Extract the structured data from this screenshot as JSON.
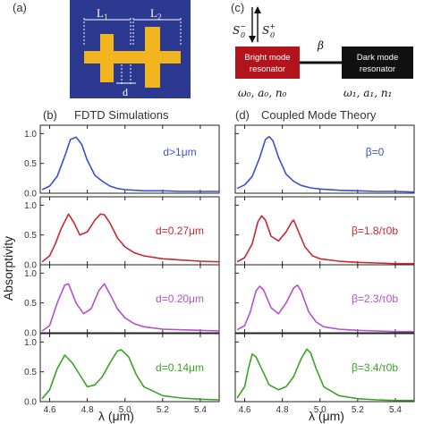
{
  "panel_labels": {
    "a": "(a)",
    "b": "(b)",
    "c": "(c)",
    "d": "(d)"
  },
  "panel_a": {
    "L1": "L",
    "L1_sub": "1",
    "L2": "L",
    "L2_sub": "2",
    "d": "d",
    "colors": {
      "background": "#2b3990",
      "crosses": "#f2b51f"
    }
  },
  "panel_c": {
    "s_minus": "S",
    "s_minus_sub": "0",
    "s_minus_sup": "−",
    "s_plus": "S",
    "s_plus_sub": "0",
    "s_plus_sup": "+",
    "beta": "β",
    "bright_line1": "Bright mode",
    "bright_line2": "resonator",
    "dark_line1": "Dark mode",
    "dark_line2": "resonator",
    "bright_params": "ω₀, a₀, n₀",
    "dark_params": "ω₁, a₁, n₁",
    "colors": {
      "bright": "#b3141b",
      "dark": "#111111"
    }
  },
  "panel_b_title": "FDTD Simulations",
  "panel_d_title": "Coupled Mode Theory",
  "y_axis_label": "Absorptivity",
  "x_axis_label": "λ (μm)",
  "chart_data": [
    {
      "type": "line",
      "panel": "(b) FDTD Simulations",
      "xlabel": "λ (μm)",
      "ylabel": "Absorptivity",
      "xlim": [
        4.55,
        5.5
      ],
      "xticks": [
        "4.6",
        "4.8",
        "5.0",
        "5.2",
        "5.4"
      ],
      "yticks": [
        "0.0",
        "0.5",
        "1.0"
      ],
      "ylim": [
        0,
        1.05
      ],
      "series": [
        {
          "name": "d>1μm",
          "color": "#3a4fd1",
          "x": [
            4.56,
            4.6,
            4.64,
            4.68,
            4.71,
            4.74,
            4.77,
            4.8,
            4.84,
            4.88,
            4.92,
            4.96,
            5.0,
            5.1,
            5.2,
            5.3,
            5.4,
            5.5
          ],
          "y": [
            0.06,
            0.12,
            0.28,
            0.62,
            0.9,
            0.94,
            0.82,
            0.55,
            0.3,
            0.2,
            0.12,
            0.08,
            0.06,
            0.04,
            0.04,
            0.03,
            0.03,
            0.03
          ]
        },
        {
          "name": "d=0.27μm",
          "color": "#c8282f",
          "x": [
            4.56,
            4.6,
            4.63,
            4.66,
            4.7,
            4.73,
            4.76,
            4.8,
            4.84,
            4.87,
            4.89,
            4.92,
            4.96,
            5.0,
            5.05,
            5.1,
            5.2,
            5.3,
            5.4,
            5.5
          ],
          "y": [
            0.05,
            0.15,
            0.35,
            0.6,
            0.85,
            0.7,
            0.5,
            0.55,
            0.75,
            0.85,
            0.84,
            0.7,
            0.45,
            0.3,
            0.2,
            0.15,
            0.1,
            0.08,
            0.06,
            0.05
          ]
        },
        {
          "name": "d=0.20μm",
          "color": "#b44fd0",
          "x": [
            4.56,
            4.6,
            4.64,
            4.68,
            4.7,
            4.74,
            4.78,
            4.82,
            4.86,
            4.89,
            4.92,
            4.96,
            5.0,
            5.05,
            5.1,
            5.2,
            5.3,
            5.4,
            5.5
          ],
          "y": [
            0.03,
            0.12,
            0.5,
            0.8,
            0.82,
            0.5,
            0.32,
            0.4,
            0.7,
            0.82,
            0.65,
            0.4,
            0.25,
            0.15,
            0.1,
            0.06,
            0.05,
            0.04,
            0.03
          ]
        },
        {
          "name": "d=0.14μm",
          "color": "#3aa324",
          "x": [
            4.56,
            4.6,
            4.64,
            4.68,
            4.72,
            4.76,
            4.8,
            4.84,
            4.88,
            4.92,
            4.96,
            4.98,
            5.02,
            5.06,
            5.1,
            5.2,
            5.3,
            5.4,
            5.5
          ],
          "y": [
            0.05,
            0.2,
            0.55,
            0.78,
            0.65,
            0.45,
            0.25,
            0.28,
            0.42,
            0.65,
            0.85,
            0.87,
            0.75,
            0.45,
            0.25,
            0.1,
            0.06,
            0.04,
            0.03
          ]
        }
      ]
    },
    {
      "type": "line",
      "panel": "(d) Coupled Mode Theory",
      "xlabel": "λ (μm)",
      "xlim": [
        4.55,
        5.5
      ],
      "xticks": [
        "4.6",
        "4.8",
        "5.0",
        "5.2",
        "5.4"
      ],
      "yticks": [
        "0.0",
        "0.5",
        "1.0"
      ],
      "ylim": [
        0,
        1.05
      ],
      "series": [
        {
          "name": "β=0",
          "color": "#3a4fd1",
          "x": [
            4.56,
            4.6,
            4.64,
            4.68,
            4.71,
            4.73,
            4.75,
            4.78,
            4.82,
            4.86,
            4.9,
            4.95,
            5.0,
            5.1,
            5.2,
            5.3,
            5.4,
            5.5
          ],
          "y": [
            0.08,
            0.14,
            0.28,
            0.6,
            0.9,
            0.95,
            0.88,
            0.6,
            0.32,
            0.2,
            0.13,
            0.09,
            0.07,
            0.05,
            0.04,
            0.03,
            0.03,
            0.02
          ]
        },
        {
          "name": "β=1.8/τ0b",
          "color": "#c8282f",
          "x": [
            4.56,
            4.6,
            4.64,
            4.67,
            4.69,
            4.71,
            4.74,
            4.78,
            4.82,
            4.85,
            4.86,
            4.88,
            4.92,
            4.96,
            5.0,
            5.1,
            5.2,
            5.3,
            5.4,
            5.5
          ],
          "y": [
            0.05,
            0.12,
            0.35,
            0.72,
            0.82,
            0.75,
            0.48,
            0.4,
            0.55,
            0.72,
            0.75,
            0.6,
            0.3,
            0.15,
            0.1,
            0.06,
            0.04,
            0.03,
            0.02,
            0.02
          ]
        },
        {
          "name": "β=2.3/τ0b",
          "color": "#b44fd0",
          "x": [
            4.56,
            4.6,
            4.63,
            4.66,
            4.68,
            4.7,
            4.74,
            4.78,
            4.82,
            4.86,
            4.88,
            4.9,
            4.94,
            4.98,
            5.02,
            5.1,
            5.2,
            5.3,
            5.4,
            5.5
          ],
          "y": [
            0.05,
            0.12,
            0.35,
            0.7,
            0.78,
            0.72,
            0.42,
            0.32,
            0.5,
            0.75,
            0.8,
            0.7,
            0.35,
            0.18,
            0.1,
            0.06,
            0.04,
            0.03,
            0.02,
            0.02
          ]
        },
        {
          "name": "β=3.4/τ0b",
          "color": "#3aa324",
          "x": [
            4.56,
            4.6,
            4.62,
            4.64,
            4.66,
            4.69,
            4.73,
            4.78,
            4.82,
            4.86,
            4.9,
            4.93,
            4.95,
            4.98,
            5.02,
            5.1,
            5.2,
            5.3,
            5.4,
            5.5
          ],
          "y": [
            0.06,
            0.25,
            0.55,
            0.8,
            0.75,
            0.55,
            0.28,
            0.2,
            0.25,
            0.42,
            0.72,
            0.88,
            0.82,
            0.55,
            0.25,
            0.1,
            0.05,
            0.03,
            0.02,
            0.02
          ]
        }
      ]
    }
  ]
}
